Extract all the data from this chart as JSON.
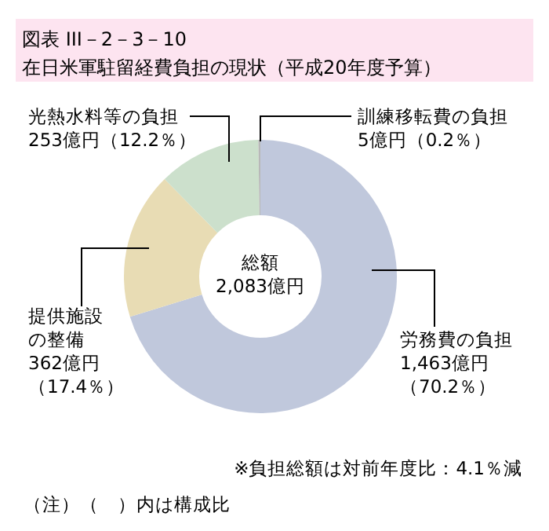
{
  "chart_data": {
    "type": "donut",
    "title": "図表 III－2－3－10",
    "subtitle": "在日米軍駐留経費負担の現状（平成20年度予算）",
    "categories": [
      "労務費の負担",
      "提供施設の整備",
      "光熱水料等の負担",
      "訓練移転費の負担"
    ],
    "values": [
      1463,
      362,
      253,
      5
    ],
    "colors": [
      "#c0c8dc",
      "#e8dcb4",
      "#cce0cc",
      "#b8b8b8"
    ],
    "value_labels": [
      "1,463億円（70.2％）",
      "362億円（17.4％）",
      "253億円（12.2％）",
      "5億円（0.2％）"
    ],
    "annotations": [
      "総額",
      "2,083億円",
      "※負担総額は対前年度比：4.1％減",
      "（注）（　）内は構成比"
    ]
  }
}
